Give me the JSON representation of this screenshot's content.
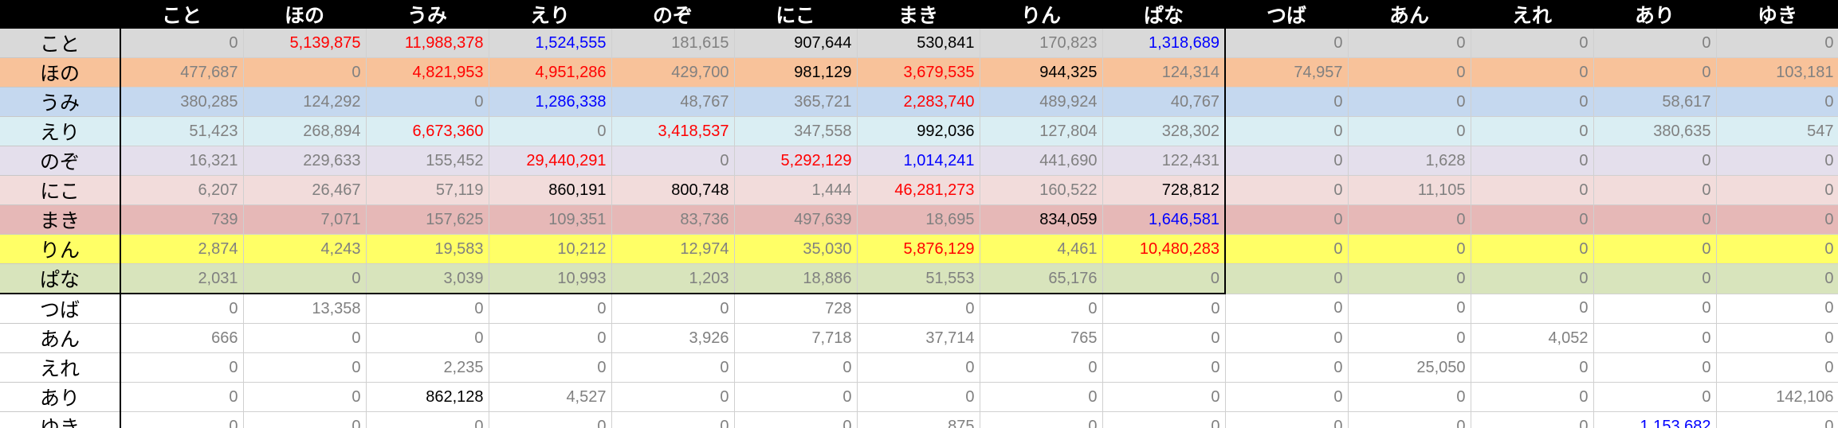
{
  "sheet": {
    "corner": "",
    "columns": [
      "こと",
      "ほの",
      "うみ",
      "えり",
      "のぞ",
      "にこ",
      "まき",
      "りん",
      "ぱな",
      "つば",
      "あん",
      "えれ",
      "あり",
      "ゆき"
    ],
    "inner_block_size": 9,
    "rows": [
      {
        "label": "こと",
        "bg": "#d9d9d9",
        "values": [
          "0",
          "5,139,875",
          "11,988,378",
          "1,524,555",
          "181,615",
          "907,644",
          "530,841",
          "170,823",
          "1,318,689",
          "0",
          "0",
          "0",
          "0",
          "0"
        ],
        "colors": [
          "gray",
          "red",
          "red",
          "blue",
          "gray",
          "black",
          "black",
          "gray",
          "blue",
          "gray",
          "gray",
          "gray",
          "gray",
          "gray"
        ]
      },
      {
        "label": "ほの",
        "bg": "#f8c29a",
        "values": [
          "477,687",
          "0",
          "4,821,953",
          "4,951,286",
          "429,700",
          "981,129",
          "3,679,535",
          "944,325",
          "124,314",
          "74,957",
          "0",
          "0",
          "0",
          "103,181"
        ],
        "colors": [
          "gray",
          "gray",
          "red",
          "red",
          "gray",
          "black",
          "red",
          "black",
          "gray",
          "gray",
          "gray",
          "gray",
          "gray",
          "gray"
        ]
      },
      {
        "label": "うみ",
        "bg": "#c5d8ef",
        "values": [
          "380,285",
          "124,292",
          "0",
          "1,286,338",
          "48,767",
          "365,721",
          "2,283,740",
          "489,924",
          "40,767",
          "0",
          "0",
          "0",
          "58,617",
          "0"
        ],
        "colors": [
          "gray",
          "gray",
          "gray",
          "blue",
          "gray",
          "gray",
          "red",
          "gray",
          "gray",
          "gray",
          "gray",
          "gray",
          "gray",
          "gray"
        ]
      },
      {
        "label": "えり",
        "bg": "#daeef3",
        "values": [
          "51,423",
          "268,894",
          "6,673,360",
          "0",
          "3,418,537",
          "347,558",
          "992,036",
          "127,804",
          "328,302",
          "0",
          "0",
          "0",
          "380,635",
          "547"
        ],
        "colors": [
          "gray",
          "gray",
          "red",
          "gray",
          "red",
          "gray",
          "black",
          "gray",
          "gray",
          "gray",
          "gray",
          "gray",
          "gray",
          "gray"
        ]
      },
      {
        "label": "のぞ",
        "bg": "#e4dfec",
        "values": [
          "16,321",
          "229,633",
          "155,452",
          "29,440,291",
          "0",
          "5,292,129",
          "1,014,241",
          "441,690",
          "122,431",
          "0",
          "1,628",
          "0",
          "0",
          "0"
        ],
        "colors": [
          "gray",
          "gray",
          "gray",
          "red",
          "gray",
          "red",
          "blue",
          "gray",
          "gray",
          "gray",
          "gray",
          "gray",
          "gray",
          "gray"
        ]
      },
      {
        "label": "にこ",
        "bg": "#f2dcdb",
        "values": [
          "6,207",
          "26,467",
          "57,119",
          "860,191",
          "800,748",
          "1,444",
          "46,281,273",
          "160,522",
          "728,812",
          "0",
          "11,105",
          "0",
          "0",
          "0"
        ],
        "colors": [
          "gray",
          "gray",
          "gray",
          "black",
          "black",
          "gray",
          "red",
          "gray",
          "black",
          "gray",
          "gray",
          "gray",
          "gray",
          "gray"
        ]
      },
      {
        "label": "まき",
        "bg": "#e6b8b7",
        "values": [
          "739",
          "7,071",
          "157,625",
          "109,351",
          "83,736",
          "497,639",
          "18,695",
          "834,059",
          "1,646,581",
          "0",
          "0",
          "0",
          "0",
          "0"
        ],
        "colors": [
          "gray",
          "gray",
          "gray",
          "gray",
          "gray",
          "gray",
          "gray",
          "black",
          "blue",
          "gray",
          "gray",
          "gray",
          "gray",
          "gray"
        ]
      },
      {
        "label": "りん",
        "bg": "#ffff66",
        "values": [
          "2,874",
          "4,243",
          "19,583",
          "10,212",
          "12,974",
          "35,030",
          "5,876,129",
          "4,461",
          "10,480,283",
          "0",
          "0",
          "0",
          "0",
          "0"
        ],
        "colors": [
          "gray",
          "gray",
          "gray",
          "gray",
          "gray",
          "gray",
          "red",
          "gray",
          "red",
          "gray",
          "gray",
          "gray",
          "gray",
          "gray"
        ]
      },
      {
        "label": "ぱな",
        "bg": "#d8e4bc",
        "values": [
          "2,031",
          "0",
          "3,039",
          "10,993",
          "1,203",
          "18,886",
          "51,553",
          "65,176",
          "0",
          "0",
          "0",
          "0",
          "0",
          "0"
        ],
        "colors": [
          "gray",
          "gray",
          "gray",
          "gray",
          "gray",
          "gray",
          "gray",
          "gray",
          "gray",
          "gray",
          "gray",
          "gray",
          "gray",
          "gray"
        ]
      },
      {
        "label": "つば",
        "bg": "#ffffff",
        "values": [
          "0",
          "13,358",
          "0",
          "0",
          "0",
          "728",
          "0",
          "0",
          "0",
          "0",
          "0",
          "0",
          "0",
          "0"
        ],
        "colors": [
          "gray",
          "gray",
          "gray",
          "gray",
          "gray",
          "gray",
          "gray",
          "gray",
          "gray",
          "gray",
          "gray",
          "gray",
          "gray",
          "gray"
        ]
      },
      {
        "label": "あん",
        "bg": "#ffffff",
        "values": [
          "666",
          "0",
          "0",
          "0",
          "3,926",
          "7,718",
          "37,714",
          "765",
          "0",
          "0",
          "0",
          "4,052",
          "0",
          "0"
        ],
        "colors": [
          "gray",
          "gray",
          "gray",
          "gray",
          "gray",
          "gray",
          "gray",
          "gray",
          "gray",
          "gray",
          "gray",
          "gray",
          "gray",
          "gray"
        ]
      },
      {
        "label": "えれ",
        "bg": "#ffffff",
        "values": [
          "0",
          "0",
          "2,235",
          "0",
          "0",
          "0",
          "0",
          "0",
          "0",
          "0",
          "25,050",
          "0",
          "0",
          "0"
        ],
        "colors": [
          "gray",
          "gray",
          "gray",
          "gray",
          "gray",
          "gray",
          "gray",
          "gray",
          "gray",
          "gray",
          "gray",
          "gray",
          "gray",
          "gray"
        ]
      },
      {
        "label": "あり",
        "bg": "#ffffff",
        "values": [
          "0",
          "0",
          "862,128",
          "4,527",
          "0",
          "0",
          "0",
          "0",
          "0",
          "0",
          "0",
          "0",
          "0",
          "142,106"
        ],
        "colors": [
          "gray",
          "gray",
          "black",
          "gray",
          "gray",
          "gray",
          "gray",
          "gray",
          "gray",
          "gray",
          "gray",
          "gray",
          "gray",
          "gray"
        ]
      },
      {
        "label": "ゆき",
        "bg": "#ffffff",
        "values": [
          "0",
          "0",
          "0",
          "0",
          "0",
          "0",
          "875",
          "0",
          "0",
          "0",
          "0",
          "0",
          "1,153,682",
          "0"
        ],
        "colors": [
          "gray",
          "gray",
          "gray",
          "gray",
          "gray",
          "gray",
          "gray",
          "gray",
          "gray",
          "gray",
          "gray",
          "gray",
          "blue",
          "gray"
        ]
      }
    ]
  }
}
